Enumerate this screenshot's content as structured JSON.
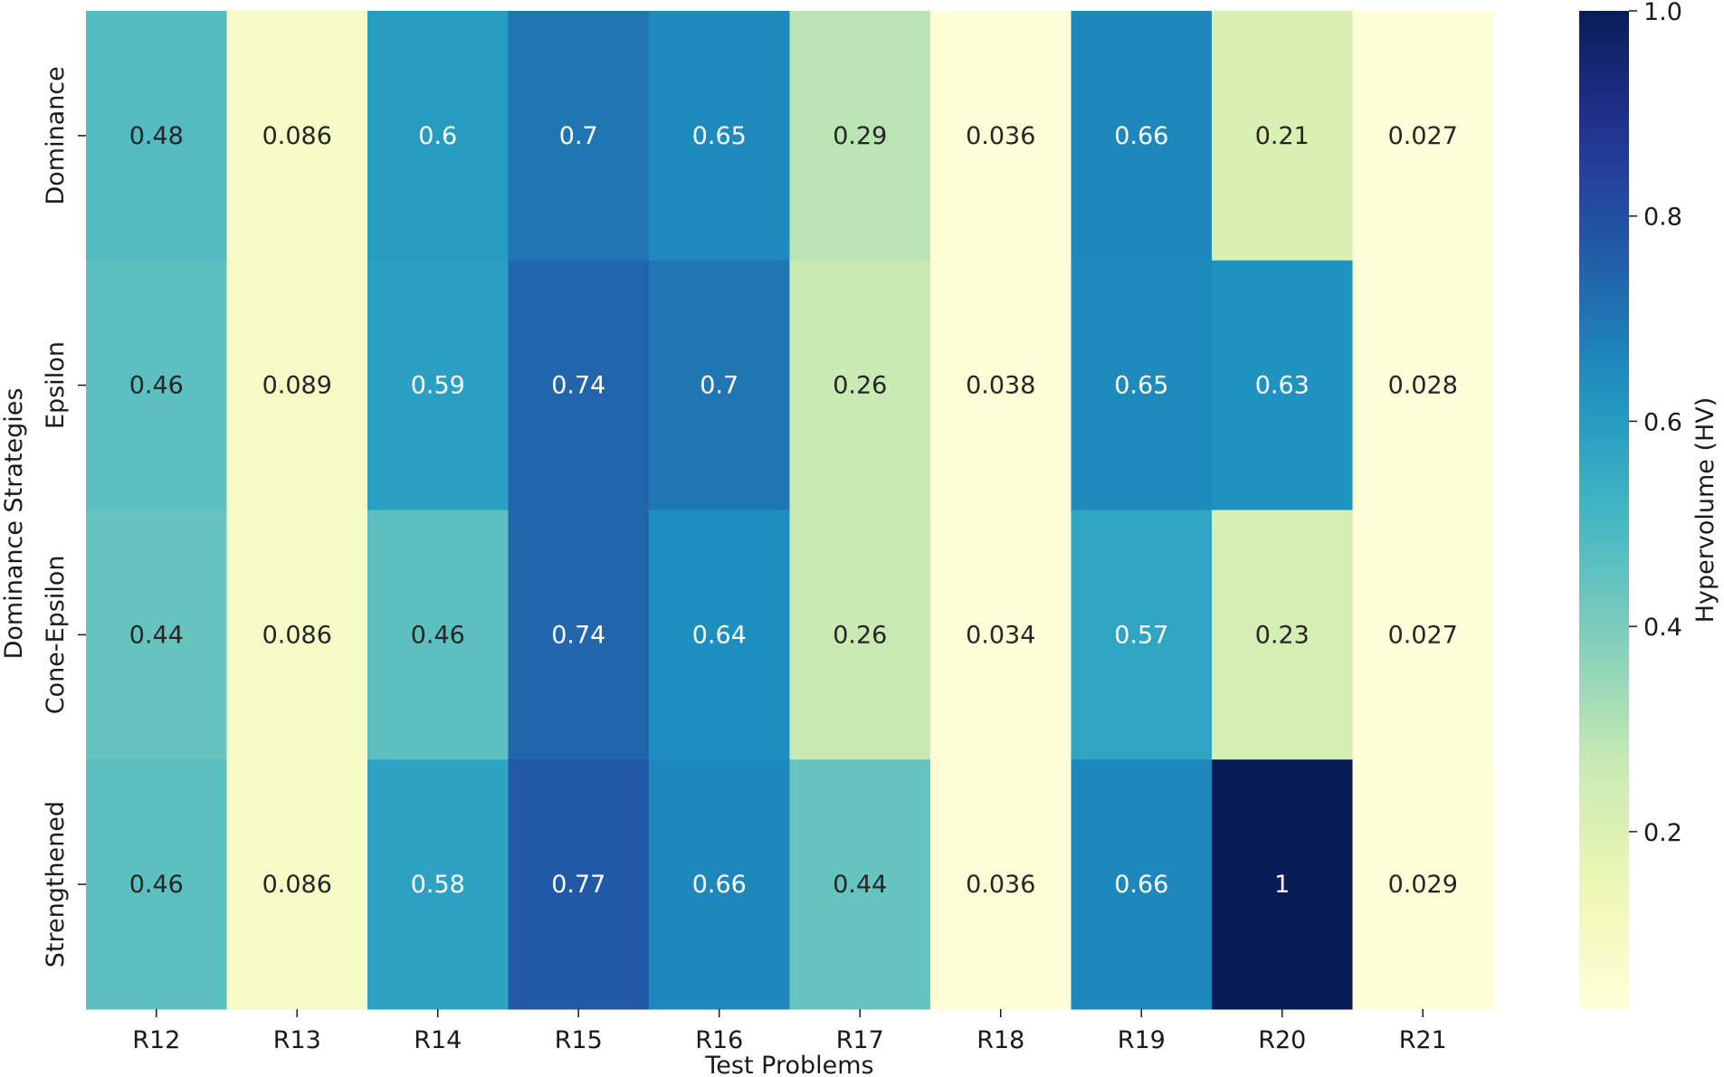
{
  "chart_data": {
    "type": "heatmap",
    "title": "",
    "xlabel": "Test Problems",
    "ylabel": "Dominance Strategies",
    "columns": [
      "R12",
      "R13",
      "R14",
      "R15",
      "R16",
      "R17",
      "R18",
      "R19",
      "R20",
      "R21"
    ],
    "rows": [
      "Dominance",
      "Epsilon",
      "Cone-Epsilon",
      "Strengthened"
    ],
    "values": [
      [
        0.48,
        0.086,
        0.6,
        0.7,
        0.65,
        0.29,
        0.036,
        0.66,
        0.21,
        0.027
      ],
      [
        0.46,
        0.089,
        0.59,
        0.74,
        0.7,
        0.26,
        0.038,
        0.65,
        0.63,
        0.028
      ],
      [
        0.44,
        0.086,
        0.46,
        0.74,
        0.64,
        0.26,
        0.034,
        0.57,
        0.23,
        0.027
      ],
      [
        0.46,
        0.086,
        0.58,
        0.77,
        0.66,
        0.44,
        0.036,
        0.66,
        1,
        0.029
      ]
    ],
    "labels": [
      [
        "0.48",
        "0.086",
        "0.6",
        "0.7",
        "0.65",
        "0.29",
        "0.036",
        "0.66",
        "0.21",
        "0.027"
      ],
      [
        "0.46",
        "0.089",
        "0.59",
        "0.74",
        "0.7",
        "0.26",
        "0.038",
        "0.65",
        "0.63",
        "0.028"
      ],
      [
        "0.44",
        "0.086",
        "0.46",
        "0.74",
        "0.64",
        "0.26",
        "0.034",
        "0.57",
        "0.23",
        "0.027"
      ],
      [
        "0.46",
        "0.086",
        "0.58",
        "0.77",
        "0.66",
        "0.44",
        "0.036",
        "0.66",
        "1",
        "0.029"
      ]
    ],
    "colorbar": {
      "label": "Hypervolume (HV)",
      "range": [
        0.027,
        1.0
      ],
      "ticks": [
        0.2,
        0.4,
        0.6,
        0.8,
        1.0
      ],
      "tick_labels": [
        "0.2",
        "0.4",
        "0.6",
        "0.8",
        "1.0"
      ],
      "colormap": "YlGnBu"
    }
  }
}
